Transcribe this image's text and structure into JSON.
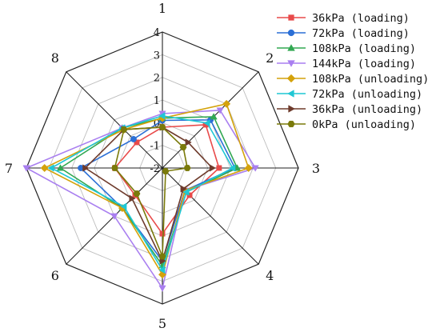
{
  "chart_data": {
    "type": "radar",
    "axes": [
      "1",
      "2",
      "3",
      "4",
      "5",
      "6",
      "7",
      "8"
    ],
    "rlim": [
      -2,
      4
    ],
    "rticks": [
      "-2",
      "-1",
      "0",
      "1",
      "2",
      "3",
      "4"
    ],
    "legend_position": "top-right",
    "series": [
      {
        "name": "36kPa (loading)",
        "color": "#e84a4a",
        "marker": "square",
        "values": [
          -0.2,
          0.7,
          0.5,
          -0.3,
          0.9,
          -0.3,
          0.1,
          -0.4
        ]
      },
      {
        "name": "72kPa (loading)",
        "color": "#2b6fd6",
        "marker": "circle",
        "values": [
          0.1,
          1.0,
          1.2,
          -0.6,
          2.1,
          0.5,
          1.6,
          -0.2
        ]
      },
      {
        "name": "108kPa (loading)",
        "color": "#32a852",
        "marker": "triangle-up",
        "values": [
          0.2,
          1.2,
          1.3,
          -0.5,
          2.3,
          0.5,
          2.5,
          0.5
        ]
      },
      {
        "name": "144kPa (loading)",
        "color": "#a97ff0",
        "marker": "triangle-down",
        "values": [
          0.4,
          1.6,
          2.1,
          -0.6,
          3.3,
          1.0,
          4.0,
          0.5
        ]
      },
      {
        "name": "108kPa (unloading)",
        "color": "#d4a20b",
        "marker": "diamond",
        "values": [
          0.2,
          2.0,
          1.8,
          -0.6,
          2.7,
          0.5,
          3.2,
          0.4
        ]
      },
      {
        "name": "72kPa (unloading)",
        "color": "#1fc7d4",
        "marker": "triangle-left",
        "values": [
          0.3,
          0.8,
          1.1,
          -0.5,
          2.5,
          0.4,
          2.9,
          0.5
        ]
      },
      {
        "name": "36kPa (unloading)",
        "color": "#6e3b2c",
        "marker": "triangle-right",
        "values": [
          -0.2,
          -0.4,
          0.2,
          -0.7,
          2.1,
          -0.1,
          1.4,
          0.4
        ]
      },
      {
        "name": "0kPa (unloading)",
        "color": "#7a7a0a",
        "marker": "hexagon",
        "values": [
          -0.2,
          -0.7,
          -0.9,
          -1.8,
          1.9,
          -0.4,
          0.1,
          0.4
        ]
      }
    ]
  }
}
